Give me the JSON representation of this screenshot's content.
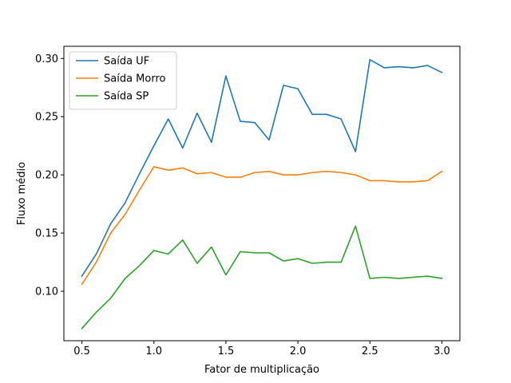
{
  "chart_data": {
    "type": "line",
    "title": "",
    "xlabel": "Fator de multiplicação",
    "ylabel": "Fluxo médio",
    "xlim": [
      0.375,
      3.125
    ],
    "ylim": [
      0.0575,
      0.3105
    ],
    "xticks": [
      0.5,
      1.0,
      1.5,
      2.0,
      2.5,
      3.0
    ],
    "xtick_labels": [
      "0.5",
      "1.0",
      "1.5",
      "2.0",
      "2.5",
      "3.0"
    ],
    "yticks": [
      0.1,
      0.15,
      0.2,
      0.25,
      0.3
    ],
    "ytick_labels": [
      "0.10",
      "0.15",
      "0.20",
      "0.25",
      "0.30"
    ],
    "grid": false,
    "legend_position": "upper-left",
    "x": [
      0.5,
      0.6,
      0.7,
      0.8,
      0.9,
      1.0,
      1.1,
      1.2,
      1.3,
      1.4,
      1.5,
      1.6,
      1.7,
      1.8,
      1.9,
      2.0,
      2.1,
      2.2,
      2.3,
      2.4,
      2.5,
      2.6,
      2.7,
      2.8,
      2.9,
      3.0
    ],
    "series": [
      {
        "name": "Saída UF",
        "color": "#1f77b4",
        "values": [
          0.113,
          0.132,
          0.158,
          0.176,
          0.201,
          0.225,
          0.248,
          0.223,
          0.253,
          0.228,
          0.285,
          0.246,
          0.245,
          0.23,
          0.277,
          0.274,
          0.252,
          0.252,
          0.248,
          0.22,
          0.299,
          0.292,
          0.293,
          0.292,
          0.294,
          0.288
        ]
      },
      {
        "name": "Saída Morro",
        "color": "#ff7f0e",
        "values": [
          0.106,
          0.125,
          0.15,
          0.166,
          0.187,
          0.207,
          0.204,
          0.206,
          0.201,
          0.202,
          0.198,
          0.198,
          0.202,
          0.203,
          0.2,
          0.2,
          0.202,
          0.203,
          0.202,
          0.2,
          0.195,
          0.195,
          0.194,
          0.194,
          0.195,
          0.203
        ]
      },
      {
        "name": "Saída SP",
        "color": "#2ca02c",
        "values": [
          0.068,
          0.082,
          0.094,
          0.111,
          0.122,
          0.135,
          0.132,
          0.144,
          0.124,
          0.138,
          0.114,
          0.134,
          0.133,
          0.133,
          0.126,
          0.128,
          0.124,
          0.125,
          0.125,
          0.156,
          0.111,
          0.112,
          0.111,
          0.112,
          0.113,
          0.111
        ]
      }
    ]
  }
}
